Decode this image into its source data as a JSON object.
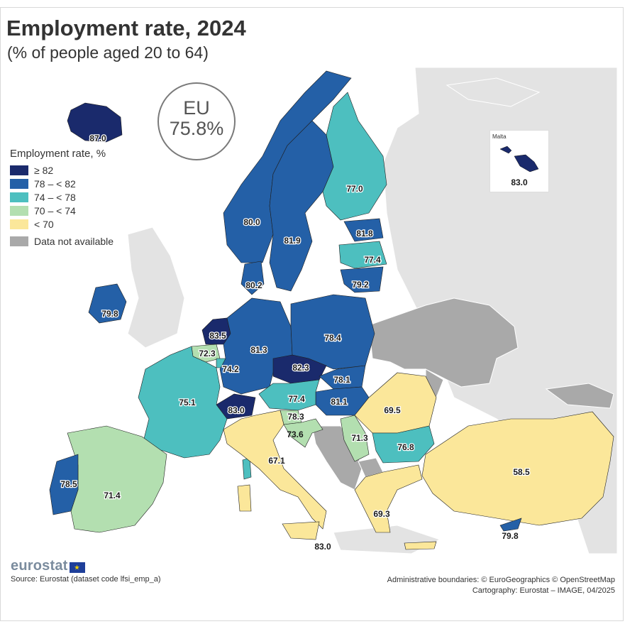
{
  "title": "Employment rate, 2024",
  "subtitle": "(% of people aged 20 to 64)",
  "eu": {
    "label": "EU",
    "value": "75.8%"
  },
  "legend": {
    "title": "Employment rate, %",
    "items": [
      {
        "label": "≥ 82",
        "color": "#1a2a6c"
      },
      {
        "label": "78 – < 82",
        "color": "#2460a7"
      },
      {
        "label": "74 – < 78",
        "color": "#4dbfbf"
      },
      {
        "label": "70 – < 74",
        "color": "#b3dfb0"
      },
      {
        "label": "< 70",
        "color": "#fbe79a"
      }
    ],
    "na_label": "Data not available",
    "na_color": "#a9a9a9"
  },
  "countries": {
    "iceland": "87.0",
    "norway": "80.0",
    "sweden": "81.9",
    "finland": "77.0",
    "estonia": "81.8",
    "latvia": "77.4",
    "lithuania": "79.2",
    "denmark": "80.2",
    "ireland": "79.8",
    "netherlands": "83.5",
    "belgium": "72.3",
    "luxembourg": "74.2",
    "germany": "81.3",
    "poland": "78.4",
    "czechia": "82.3",
    "slovakia": "78.1",
    "hungary": "81.1",
    "austria": "77.4",
    "switzerland": "83.0",
    "slovenia": "78.3",
    "croatia": "73.6",
    "serbia": "71.3",
    "romania": "69.5",
    "bulgaria": "76.8",
    "france": "75.1",
    "italy": "67.1",
    "spain": "71.4",
    "portugal": "78.5",
    "greece": "69.3",
    "turkey": "58.5",
    "cyprus": "79.8",
    "malta": "83.0"
  },
  "inset": {
    "name": "Malta",
    "value": "83.0"
  },
  "logo": "eurostat",
  "source": "Source: Eurostat (dataset code lfsi_emp_a)",
  "credits": {
    "line1": "Administrative boundaries: © EuroGeographics © OpenStreetMap",
    "line2": "Cartography: Eurostat – IMAGE, 04/2025"
  }
}
